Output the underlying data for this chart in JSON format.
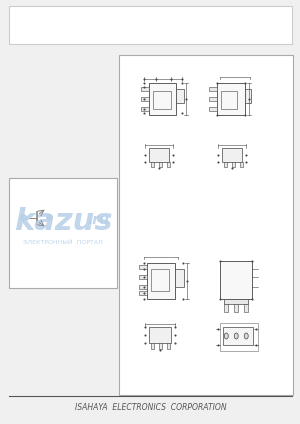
{
  "bg_color": "#f0f0f0",
  "page_bg": "#ffffff",
  "border_color": "#cccccc",
  "footer_text": "ISAHAYA  ELECTRONICS  CORPORATION",
  "footer_fontsize": 5.5,
  "footer_color": "#555555",
  "diagram_bg": "#ffffff",
  "diagram_border": "#aaaaaa",
  "line_color": "#444444",
  "watermark_text_top": "kazus",
  "watermark_text_bottom": "ЭЛЕКТРОННЫЙ  ПОРТАЛ",
  "watermark_color": "#b8cfe8"
}
